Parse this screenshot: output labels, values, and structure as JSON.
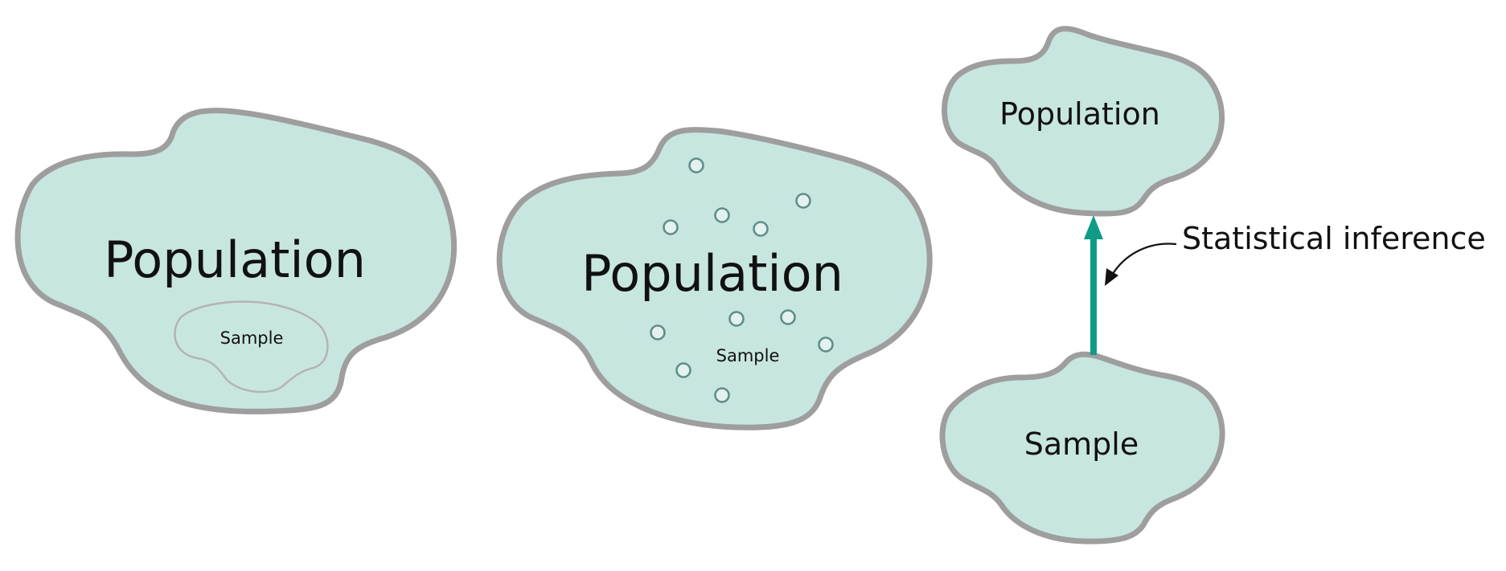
{
  "panels": [
    {
      "id": "subset",
      "population_label": "Population",
      "sample_label": "Sample"
    },
    {
      "id": "scattered",
      "population_label": "Population",
      "sample_label": "Sample"
    },
    {
      "id": "inference",
      "population_label": "Population",
      "sample_label": "Sample",
      "arrow_label": "Statistical inference"
    }
  ],
  "colors": {
    "fill": "#c8e6e0",
    "outline": "#9e9e9e",
    "arrow": "#0f9b86",
    "text": "#111111"
  }
}
